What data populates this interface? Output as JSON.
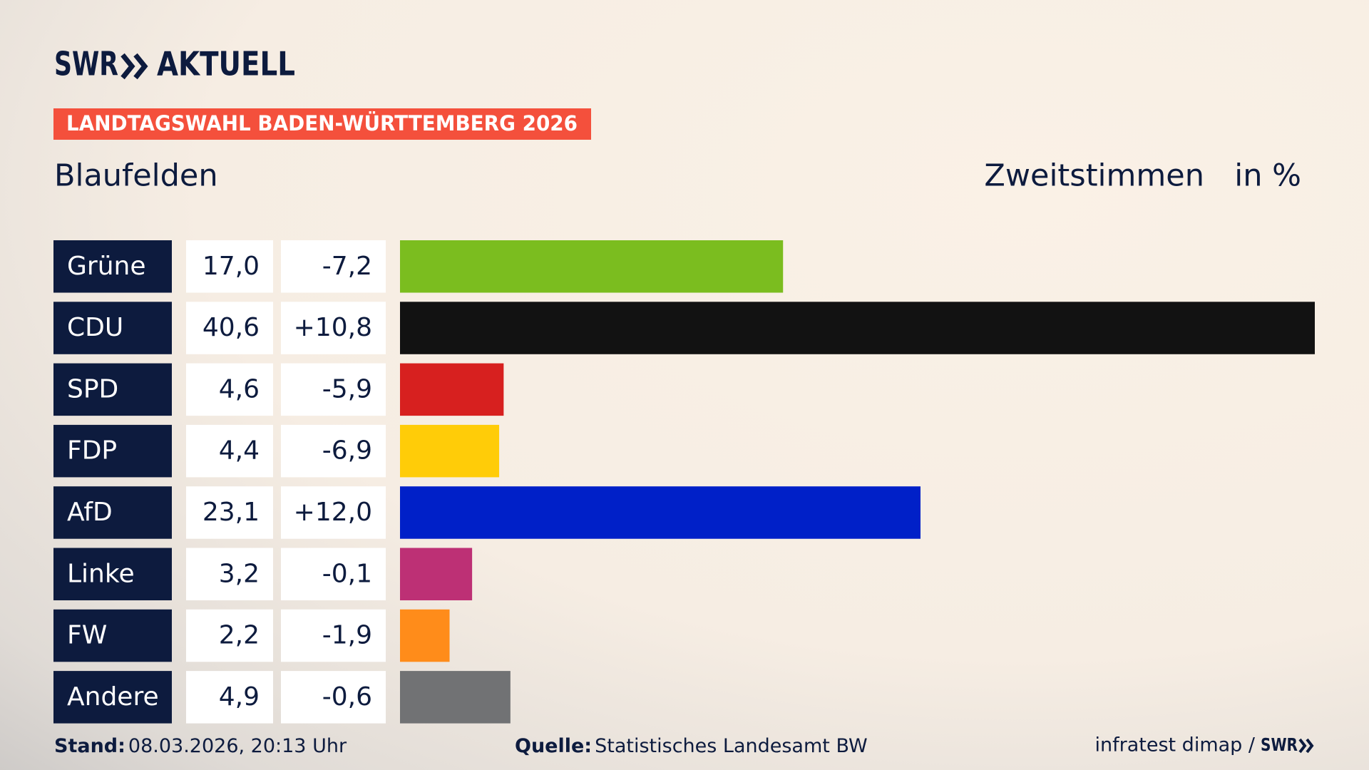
{
  "chart_data": {
    "type": "bar",
    "brand": "SWR",
    "brand_section": "AKTUELL",
    "banner": "LANDTAGSWAHL BADEN-WÜRTTEMBERG 2026",
    "title": "Blaufelden",
    "subtitle": "Zweitstimmen",
    "unit": "in %",
    "categories": [
      "Grüne",
      "CDU",
      "SPD",
      "FDP",
      "AfD",
      "Linke",
      "FW",
      "Andere"
    ],
    "values": [
      17.0,
      40.6,
      4.6,
      4.4,
      23.1,
      3.2,
      2.2,
      4.9
    ],
    "value_labels": [
      "17,0",
      "40,6",
      "4,6",
      "4,4",
      "23,1",
      "3,2",
      "2,2",
      "4,9"
    ],
    "changes": [
      -7.2,
      10.8,
      -5.9,
      -6.9,
      12.0,
      -0.1,
      -1.9,
      -0.6
    ],
    "change_labels": [
      "-7,2",
      "+10,8",
      "-5,9",
      "-6,9",
      "+12,0",
      "-0,1",
      "-1,9",
      "-0,6"
    ],
    "colors": [
      "#7bbd1f",
      "#121212",
      "#d7201f",
      "#ffcc08",
      "#0020c8",
      "#bd3075",
      "#ff8c1a",
      "#717274"
    ],
    "stand_label": "Stand:",
    "stand": "08.03.2026, 20:13 Uhr",
    "source_label": "Quelle:",
    "source": "Statistisches Landesamt BW",
    "credit": "infratest dimap /"
  }
}
